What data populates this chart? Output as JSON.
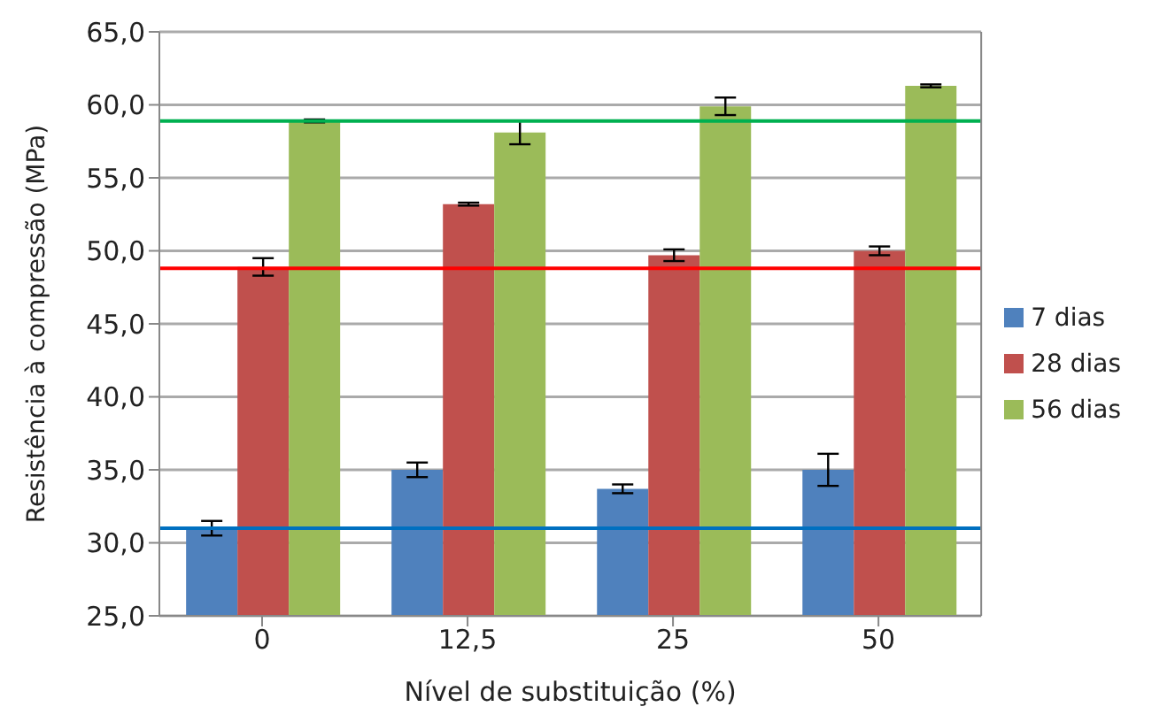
{
  "chart_data": {
    "type": "bar",
    "xlabel": "Nível de substituição (%)",
    "ylabel": "Resistência à compressão (MPa)",
    "categories": [
      "0",
      "12,5",
      "25",
      "50"
    ],
    "series": [
      {
        "name": "7 dias",
        "color": "#4f81bd",
        "values": [
          31.0,
          35.0,
          33.7,
          35.0
        ],
        "errors": [
          0.5,
          0.5,
          0.3,
          1.1
        ]
      },
      {
        "name": "28 dias",
        "color": "#c0504d",
        "values": [
          48.9,
          53.2,
          49.7,
          50.0
        ],
        "errors": [
          0.6,
          0.1,
          0.4,
          0.3
        ]
      },
      {
        "name": "56 dias",
        "color": "#9bbb59",
        "values": [
          58.9,
          58.1,
          59.9,
          61.3
        ],
        "errors": [
          0.1,
          0.8,
          0.6,
          0.1
        ]
      }
    ],
    "ylim": [
      25,
      65
    ],
    "yticks": [
      {
        "value": 25,
        "label": "25,0"
      },
      {
        "value": 30,
        "label": "30,0"
      },
      {
        "value": 35,
        "label": "35,0"
      },
      {
        "value": 40,
        "label": "40,0"
      },
      {
        "value": 45,
        "label": "45,0"
      },
      {
        "value": 50,
        "label": "50,0"
      },
      {
        "value": 55,
        "label": "55,0"
      },
      {
        "value": 60,
        "label": "60,0"
      },
      {
        "value": 65,
        "label": "65,0"
      }
    ],
    "ref_lines": [
      {
        "axis": "y",
        "value": 31.0,
        "color": "#0070c0"
      },
      {
        "axis": "y",
        "value": 48.8,
        "color": "#ff0000"
      },
      {
        "axis": "y",
        "value": 58.9,
        "color": "#00b050"
      }
    ],
    "grid": "y",
    "legend": "right"
  }
}
